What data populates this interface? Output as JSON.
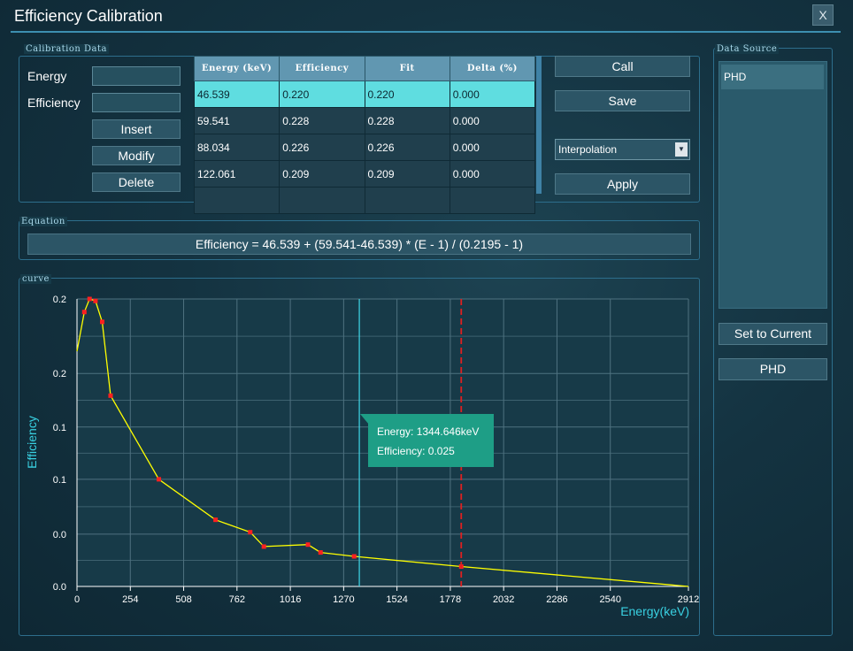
{
  "window": {
    "title": "Efficiency Calibration",
    "close_label": "X"
  },
  "calibration": {
    "group_label": "Calibration Data",
    "energy_label": "Energy",
    "efficiency_label": "Efficiency",
    "energy_value": "",
    "efficiency_value": "",
    "insert_label": "Insert",
    "modify_label": "Modify",
    "delete_label": "Delete",
    "table": {
      "headers": [
        "Energy (keV)",
        "Efficiency",
        "Fit",
        "Delta (%)"
      ],
      "rows": [
        [
          "46.539",
          "0.220",
          "0.220",
          "0.000"
        ],
        [
          "59.541",
          "0.228",
          "0.228",
          "0.000"
        ],
        [
          "88.034",
          "0.226",
          "0.226",
          "0.000"
        ],
        [
          "122.061",
          "0.209",
          "0.209",
          "0.000"
        ]
      ]
    },
    "call_label": "Call",
    "save_label": "Save",
    "method_selected": "Interpolation",
    "apply_label": "Apply"
  },
  "equation": {
    "group_label": "Equation",
    "text": "Efficiency = 46.539 + (59.541-46.539) * (E - 1) / (0.2195 - 1)"
  },
  "curve": {
    "group_label": "curve",
    "tooltip_energy": "Energy: 1344.646keV",
    "tooltip_efficiency": "Efficiency: 0.025"
  },
  "chart_data": {
    "type": "line",
    "xlabel": "Energy(keV)",
    "ylabel": "Efficiency",
    "xlim": [
      0,
      2912
    ],
    "ylim": [
      0,
      0.22
    ],
    "x_ticks": [
      "0",
      "254",
      "508",
      "762",
      "1016",
      "1270",
      "1524",
      "1778",
      "2032",
      "2286",
      "2540",
      "2912"
    ],
    "y_ticks": [
      "0.0",
      "0.0",
      "0.1",
      "0.1",
      "0.2",
      "0.2"
    ],
    "y_tick_values": [
      0,
      0.04,
      0.082,
      0.122,
      0.163,
      0.22
    ],
    "grid": true,
    "series": [
      {
        "color": "#ffff00",
        "marker_color": "#ff2020",
        "points": [
          [
            0,
            0.18
          ],
          [
            35,
            0.21
          ],
          [
            60,
            0.22
          ],
          [
            88,
            0.2185
          ],
          [
            120,
            0.2025
          ],
          [
            160,
            0.146
          ],
          [
            390,
            0.082
          ],
          [
            660,
            0.051
          ],
          [
            825,
            0.0415
          ],
          [
            890,
            0.0305
          ],
          [
            1100,
            0.032
          ],
          [
            1160,
            0.026
          ],
          [
            1320,
            0.023
          ],
          [
            1830,
            0.0152
          ],
          [
            2912,
            0
          ]
        ],
        "markers": [
          [
            35,
            0.21
          ],
          [
            60,
            0.22
          ],
          [
            88,
            0.2185
          ],
          [
            120,
            0.2025
          ],
          [
            160,
            0.146
          ],
          [
            390,
            0.082
          ],
          [
            660,
            0.051
          ],
          [
            825,
            0.0415
          ],
          [
            890,
            0.0305
          ],
          [
            1100,
            0.032
          ],
          [
            1160,
            0.026
          ],
          [
            1320,
            0.023
          ],
          [
            1830,
            0.0152
          ]
        ]
      }
    ],
    "cursor_x": 1344.646,
    "marker_x": 1830,
    "cursor_color": "#40d8e8",
    "marker_line_color": "#e02020"
  },
  "data_source": {
    "group_label": "Data Source",
    "items": [
      "PHD"
    ],
    "set_current_label": "Set to Current",
    "current_label": "PHD"
  }
}
